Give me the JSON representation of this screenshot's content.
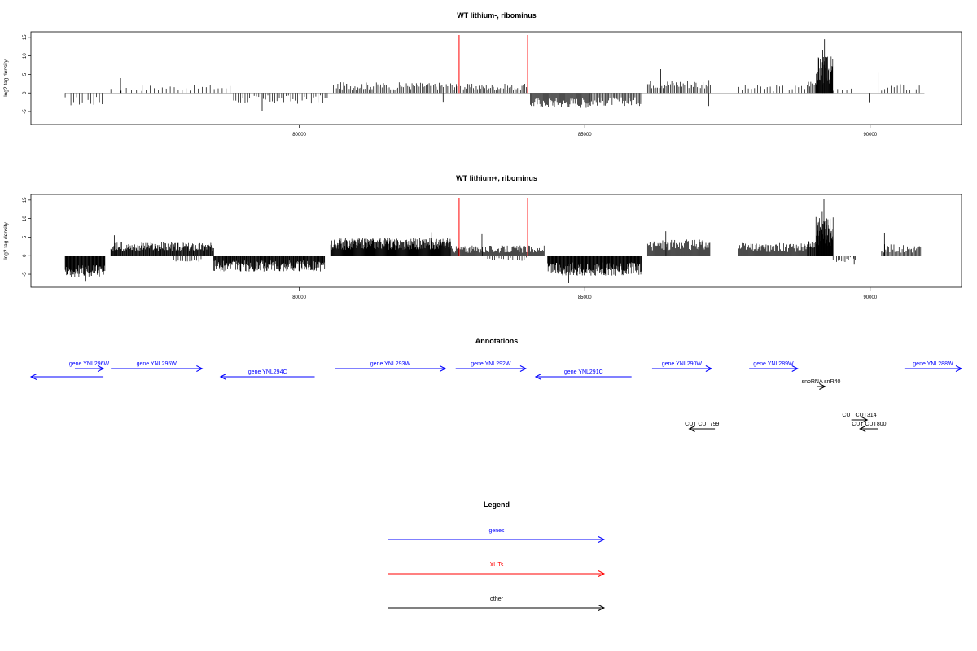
{
  "chart_data": [
    {
      "type": "bar",
      "title": "WT lithium-, ribominus",
      "ylabel": "log2 tag density",
      "xlabel": "",
      "xlim": [
        75300,
        91600
      ],
      "ylim": [
        -8.5,
        16.5
      ],
      "x_ticks": [
        80000,
        85000,
        90000
      ],
      "y_ticks": [
        -5,
        0,
        5,
        10,
        15
      ],
      "markers": [
        {
          "x": 82800,
          "color": "#ff0000"
        },
        {
          "x": 84000,
          "color": "#ff0000"
        }
      ],
      "segments": [
        {
          "start": 75900,
          "end": 76550,
          "mean": -2.2,
          "amp": 1.3,
          "step": 50
        },
        {
          "start": 76700,
          "end": 77250,
          "mean": 1.1,
          "amp": 0.6,
          "step": 90
        },
        {
          "start": 77250,
          "end": 78800,
          "mean": 1.4,
          "amp": 0.8,
          "step": 70
        },
        {
          "start": 78850,
          "end": 80500,
          "mean": -1.8,
          "amp": 1.2,
          "step": 40
        },
        {
          "start": 80600,
          "end": 82750,
          "mean": 1.9,
          "amp": 1.0,
          "step": 25
        },
        {
          "start": 82750,
          "end": 84000,
          "mean": 1.6,
          "amp": 0.9,
          "step": 25
        },
        {
          "start": 84050,
          "end": 85100,
          "mean": -2.6,
          "amp": 1.4,
          "step": 15
        },
        {
          "start": 85100,
          "end": 86000,
          "mean": -2.3,
          "amp": 1.2,
          "step": 20
        },
        {
          "start": 86100,
          "end": 87200,
          "mean": 2.4,
          "amp": 1.2,
          "step": 25
        },
        {
          "start": 87700,
          "end": 88900,
          "mean": 1.3,
          "amp": 0.9,
          "step": 55
        },
        {
          "start": 88900,
          "end": 89050,
          "mean": 2.5,
          "amp": 1.0,
          "step": 20
        },
        {
          "start": 89050,
          "end": 89350,
          "mean": 6.0,
          "amp": 4.0,
          "step": 7
        },
        {
          "start": 89350,
          "end": 89700,
          "mean": 0.8,
          "amp": 0.4,
          "step": 80
        },
        {
          "start": 90200,
          "end": 90900,
          "mean": 1.5,
          "amp": 1.0,
          "step": 55
        }
      ],
      "spikes": [
        {
          "x": 76870,
          "y": 4
        },
        {
          "x": 86330,
          "y": 6.4
        },
        {
          "x": 89200,
          "y": 14.5
        },
        {
          "x": 89170,
          "y": 11.5
        },
        {
          "x": 89230,
          "y": 9.5
        },
        {
          "x": 87170,
          "y": -3.5
        },
        {
          "x": 89980,
          "y": -2.5
        },
        {
          "x": 90140,
          "y": 5.5
        },
        {
          "x": 82520,
          "y": -2.4
        },
        {
          "x": 79350,
          "y": -5
        }
      ]
    },
    {
      "type": "bar",
      "title": "WT lithium+, ribominus",
      "ylabel": "log2 tag density",
      "xlabel": "",
      "xlim": [
        75300,
        91600
      ],
      "ylim": [
        -8.5,
        16.5
      ],
      "x_ticks": [
        80000,
        85000,
        90000
      ],
      "y_ticks": [
        -5,
        0,
        5,
        10,
        15
      ],
      "markers": [
        {
          "x": 82800,
          "color": "#ff0000"
        },
        {
          "x": 84000,
          "color": "#ff0000"
        }
      ],
      "segments": [
        {
          "start": 75900,
          "end": 76600,
          "mean": -4.2,
          "amp": 1.6,
          "step": 8
        },
        {
          "start": 76700,
          "end": 78500,
          "mean": 2.4,
          "amp": 1.2,
          "step": 10
        },
        {
          "start": 77800,
          "end": 78300,
          "mean": -1.0,
          "amp": 0.6,
          "step": 40
        },
        {
          "start": 78500,
          "end": 80450,
          "mean": -2.8,
          "amp": 1.5,
          "step": 9
        },
        {
          "start": 80550,
          "end": 82650,
          "mean": 3.2,
          "amp": 1.6,
          "step": 7
        },
        {
          "start": 82650,
          "end": 84300,
          "mean": 1.8,
          "amp": 1.0,
          "step": 14
        },
        {
          "start": 83300,
          "end": 84000,
          "mean": -0.9,
          "amp": 0.5,
          "step": 40
        },
        {
          "start": 84350,
          "end": 86000,
          "mean": -3.6,
          "amp": 1.8,
          "step": 8
        },
        {
          "start": 86100,
          "end": 87200,
          "mean": 2.9,
          "amp": 1.5,
          "step": 14
        },
        {
          "start": 87700,
          "end": 88900,
          "mean": 2.2,
          "amp": 1.2,
          "step": 14
        },
        {
          "start": 88900,
          "end": 89050,
          "mean": 3.0,
          "amp": 1.0,
          "step": 10
        },
        {
          "start": 89050,
          "end": 89350,
          "mean": 6.5,
          "amp": 4.0,
          "step": 5
        },
        {
          "start": 89350,
          "end": 89750,
          "mean": -1.2,
          "amp": 0.8,
          "step": 30
        },
        {
          "start": 90200,
          "end": 90900,
          "mean": 2.0,
          "amp": 1.2,
          "step": 18
        }
      ],
      "spikes": [
        {
          "x": 76760,
          "y": 5.5
        },
        {
          "x": 89190,
          "y": 15.3
        },
        {
          "x": 89160,
          "y": 12
        },
        {
          "x": 89230,
          "y": 10
        },
        {
          "x": 86420,
          "y": 6.6
        },
        {
          "x": 83200,
          "y": 6.0
        },
        {
          "x": 82320,
          "y": 6.3
        },
        {
          "x": 76260,
          "y": -6.8
        },
        {
          "x": 84720,
          "y": -7.4
        },
        {
          "x": 90250,
          "y": 6.2
        },
        {
          "x": 89720,
          "y": -2.4
        }
      ]
    }
  ],
  "annotations": {
    "title": "Annotations",
    "features": [
      {
        "label": "gene YNL296W",
        "type": "gene",
        "start": 75300,
        "end": 76570,
        "strand": "-",
        "row": 1,
        "color": "#0000ff"
      },
      {
        "label": "",
        "type": "gene",
        "start": 76070,
        "end": 76570,
        "strand": "+",
        "row": 0,
        "color": "#0000ff"
      },
      {
        "label": "gene YNL295W",
        "type": "gene",
        "start": 76700,
        "end": 78300,
        "strand": "+",
        "row": 0,
        "color": "#0000ff"
      },
      {
        "label": "gene YNL294C",
        "type": "gene",
        "start": 78620,
        "end": 80270,
        "strand": "-",
        "row": 1,
        "color": "#0000ff"
      },
      {
        "label": "gene YNL293W",
        "type": "gene",
        "start": 80630,
        "end": 82560,
        "strand": "+",
        "row": 0,
        "color": "#0000ff"
      },
      {
        "label": "gene YNL292W",
        "type": "gene",
        "start": 82740,
        "end": 83970,
        "strand": "+",
        "row": 0,
        "color": "#0000ff"
      },
      {
        "label": "gene YNL291C",
        "type": "gene",
        "start": 84140,
        "end": 85820,
        "strand": "-",
        "row": 1,
        "color": "#0000ff"
      },
      {
        "label": "gene YNL290W",
        "type": "gene",
        "start": 86180,
        "end": 87220,
        "strand": "+",
        "row": 0,
        "color": "#0000ff"
      },
      {
        "label": "gene YNL289W",
        "type": "gene",
        "start": 87880,
        "end": 88730,
        "strand": "+",
        "row": 0,
        "color": "#0000ff"
      },
      {
        "label": "gene YNL288W",
        "type": "gene",
        "start": 90600,
        "end": 91600,
        "strand": "+",
        "row": 0,
        "color": "#0000ff"
      },
      {
        "label": "snoRNA snR40",
        "type": "other",
        "start": 89070,
        "end": 89210,
        "strand": "+",
        "row": 2,
        "color": "#000000"
      },
      {
        "label": "CUT CUT799",
        "type": "other",
        "start": 86830,
        "end": 87280,
        "strand": "-",
        "row": 4,
        "color": "#000000"
      },
      {
        "label": "CUT CUT314",
        "type": "other",
        "start": 89670,
        "end": 89950,
        "strand": "+",
        "row": 3,
        "color": "#000000"
      },
      {
        "label": "CUT CUT800",
        "type": "other",
        "start": 89820,
        "end": 90140,
        "strand": "-",
        "row": 4,
        "color": "#000000"
      }
    ]
  },
  "legend": {
    "title": "Legend",
    "entries": [
      {
        "label": "genes",
        "color": "#0000ff"
      },
      {
        "label": "XUTs",
        "color": "#ff0000"
      },
      {
        "label": "other",
        "color": "#000000"
      }
    ]
  }
}
